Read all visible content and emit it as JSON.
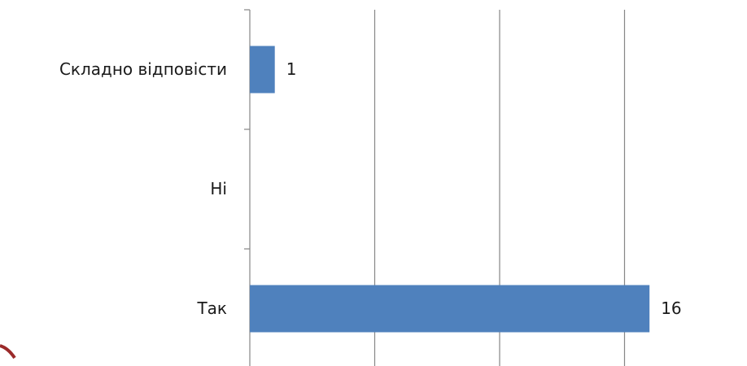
{
  "chart_data": {
    "type": "bar",
    "orientation": "horizontal",
    "categories": [
      "Складно відповісти",
      "Ні",
      "Так"
    ],
    "values": [
      1,
      null,
      16
    ],
    "color": "#4f81bd",
    "xlim": [
      0,
      20
    ],
    "xticks": [
      0,
      5,
      10,
      15
    ],
    "grid": true
  }
}
